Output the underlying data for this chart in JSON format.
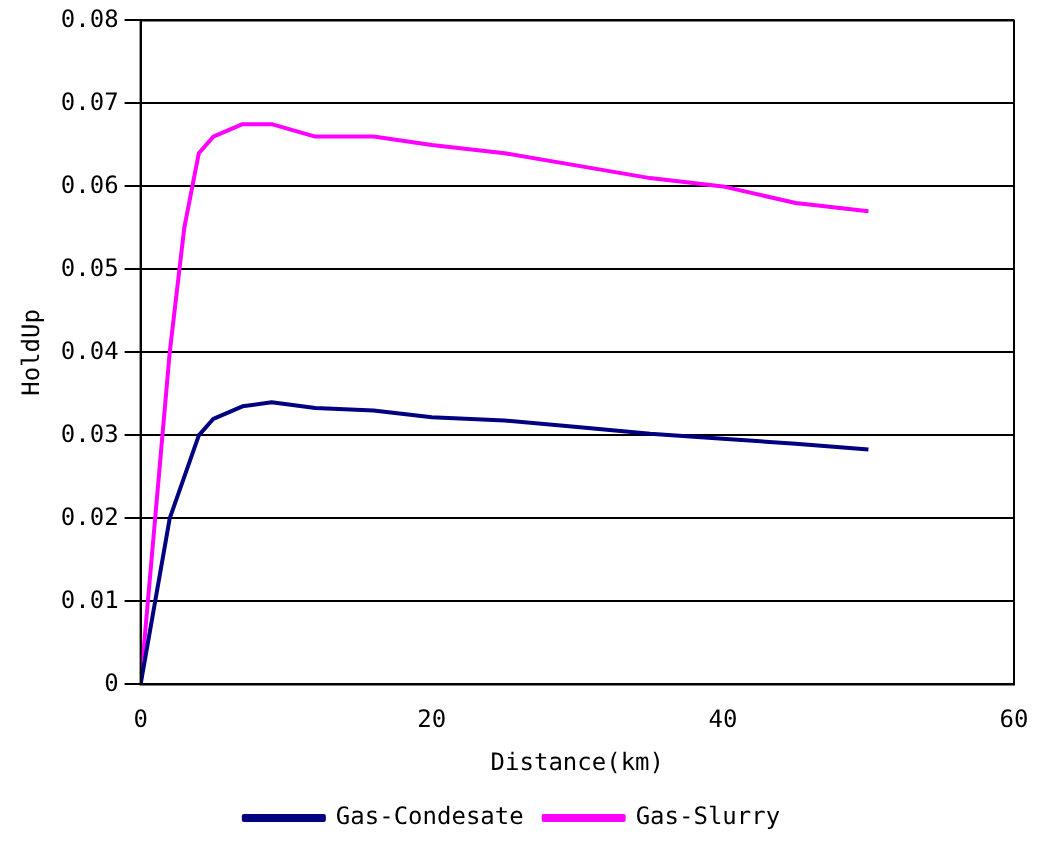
{
  "chart_data": {
    "type": "line",
    "xlabel": "Distance(km)",
    "ylabel": "HoldUp",
    "xlim": [
      0,
      60
    ],
    "xticks": [
      0,
      20,
      40,
      60
    ],
    "ylim": [
      0,
      0.08
    ],
    "yticks": [
      0,
      0.01,
      0.02,
      0.03,
      0.04,
      0.05,
      0.06,
      0.07,
      0.08
    ],
    "grid": "y",
    "legend": "bottom",
    "marker": "none",
    "line_style": "solid",
    "x": [
      0,
      1,
      2,
      3,
      4,
      5,
      7,
      9,
      12,
      16,
      20,
      25,
      30,
      35,
      40,
      45,
      50
    ],
    "series": [
      {
        "name": "Gas-Condesate",
        "color": "#000080",
        "values": [
          0,
          0.01,
          0.02,
          0.025,
          0.03,
          0.032,
          0.0335,
          0.034,
          0.0333,
          0.033,
          0.0322,
          0.0318,
          0.031,
          0.0302,
          0.0296,
          0.029,
          0.0283
        ]
      },
      {
        "name": "Gas-Slurry",
        "color": "#ff00ff",
        "values": [
          0,
          0.02,
          0.04,
          0.055,
          0.064,
          0.066,
          0.0675,
          0.0675,
          0.066,
          0.066,
          0.065,
          0.064,
          0.0625,
          0.061,
          0.06,
          0.058,
          0.057
        ]
      }
    ]
  }
}
